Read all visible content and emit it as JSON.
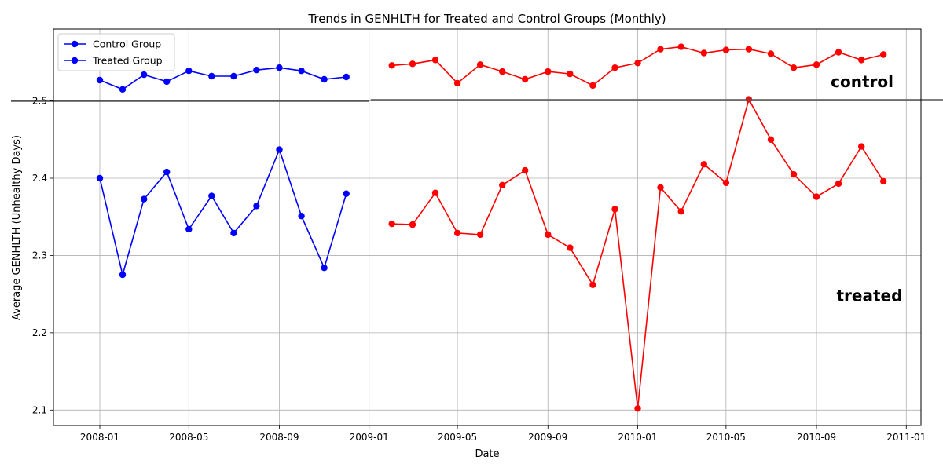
{
  "chart_data": {
    "type": "line",
    "title": "Trends in GENHLTH for Treated and Control Groups (Monthly)",
    "xlabel": "Date",
    "ylabel": "Average GENHLTH (Unhealthy Days)",
    "xlim": [
      "2007-10-30",
      "2011-01-21"
    ],
    "ylim": [
      2.08,
      2.593
    ],
    "x_ticks": [
      "2008-01",
      "2008-05",
      "2008-09",
      "2009-01",
      "2009-05",
      "2009-09",
      "2010-01",
      "2010-05",
      "2010-09",
      "2011-01"
    ],
    "y_ticks": [
      2.1,
      2.2,
      2.3,
      2.4,
      2.5
    ],
    "grid": true,
    "legend": {
      "position": "top-left",
      "entries": [
        {
          "label": "Control Group",
          "color": "#0000ff"
        },
        {
          "label": "Treated Group",
          "color": "#0000ff"
        }
      ]
    },
    "reference_line": {
      "y": 2.5,
      "color": "#555555"
    },
    "annotations": [
      {
        "text": "control",
        "x": "2010-11-02",
        "y": 2.525
      },
      {
        "text": "treated",
        "x": "2010-11-12",
        "y": 2.248
      }
    ],
    "series": [
      {
        "group": "control",
        "period": "2008",
        "color": "#0000ff",
        "x": [
          "2008-01-01",
          "2008-02-01",
          "2008-03-01",
          "2008-04-01",
          "2008-05-01",
          "2008-06-01",
          "2008-07-01",
          "2008-08-01",
          "2008-09-01",
          "2008-10-01",
          "2008-11-01",
          "2008-12-01"
        ],
        "values": [
          2.527,
          2.515,
          2.534,
          2.525,
          2.539,
          2.532,
          2.532,
          2.54,
          2.543,
          2.539,
          2.528,
          2.531
        ]
      },
      {
        "group": "treated",
        "period": "2008",
        "color": "#0000ff",
        "x": [
          "2008-01-01",
          "2008-02-01",
          "2008-03-01",
          "2008-04-01",
          "2008-05-01",
          "2008-06-01",
          "2008-07-01",
          "2008-08-01",
          "2008-09-01",
          "2008-10-01",
          "2008-11-01",
          "2008-12-01"
        ],
        "values": [
          2.4,
          2.275,
          2.373,
          2.408,
          2.334,
          2.377,
          2.329,
          2.364,
          2.437,
          2.351,
          2.284,
          2.38
        ]
      },
      {
        "group": "control",
        "period": "2009-2010",
        "color": "#ff0000",
        "x": [
          "2009-02-01",
          "2009-03-01",
          "2009-04-01",
          "2009-05-01",
          "2009-06-01",
          "2009-07-01",
          "2009-08-01",
          "2009-09-01",
          "2009-10-01",
          "2009-11-01",
          "2009-12-01",
          "2010-01-01",
          "2010-02-01",
          "2010-03-01",
          "2010-04-01",
          "2010-05-01",
          "2010-06-01",
          "2010-07-01",
          "2010-08-01",
          "2010-09-01",
          "2010-10-01",
          "2010-11-01",
          "2010-12-01"
        ],
        "values": [
          2.546,
          2.548,
          2.553,
          2.523,
          2.547,
          2.538,
          2.528,
          2.538,
          2.535,
          2.52,
          2.543,
          2.549,
          2.567,
          2.57,
          2.562,
          2.566,
          2.567,
          2.561,
          2.543,
          2.547,
          2.563,
          2.553,
          2.56
        ]
      },
      {
        "group": "treated",
        "period": "2009-2010",
        "color": "#ff0000",
        "x": [
          "2009-02-01",
          "2009-03-01",
          "2009-04-01",
          "2009-05-01",
          "2009-06-01",
          "2009-07-01",
          "2009-08-01",
          "2009-09-01",
          "2009-10-01",
          "2009-11-01",
          "2009-12-01",
          "2010-01-01",
          "2010-02-01",
          "2010-03-01",
          "2010-04-01",
          "2010-05-01",
          "2010-06-01",
          "2010-07-01",
          "2010-08-01",
          "2010-09-01",
          "2010-10-01",
          "2010-11-01",
          "2010-12-01"
        ],
        "values": [
          2.341,
          2.34,
          2.381,
          2.329,
          2.327,
          2.391,
          2.41,
          2.327,
          2.31,
          2.262,
          2.36,
          2.102,
          2.388,
          2.357,
          2.418,
          2.394,
          2.502,
          2.45,
          2.405,
          2.376,
          2.393,
          2.441,
          2.396
        ]
      }
    ]
  }
}
